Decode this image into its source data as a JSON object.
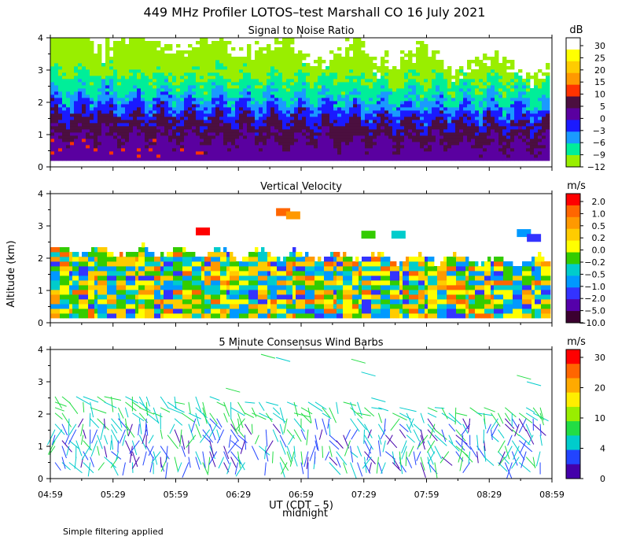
{
  "figure_title": "449 MHz Profiler LOTOS–test Marshall CO 16 July 2021",
  "ylabel": "Altitude (km)",
  "x_axis": {
    "ticks": [
      "04:59",
      "05:29",
      "05:59",
      "06:29",
      "06:59",
      "07:29",
      "07:59",
      "08:29",
      "08:59"
    ],
    "label": "UT  (CDT – 5)",
    "marker_label": "midnight"
  },
  "footnote": "Simple filtering applied",
  "chart_data": [
    {
      "type": "heatmap",
      "title": "Signal to Noise Ratio",
      "ylim": [
        0,
        4
      ],
      "yticks": [
        "0",
        "1",
        "2",
        "3",
        "4"
      ],
      "colorbar": {
        "unit": "dB",
        "labels": [
          "30",
          "25",
          "20",
          "15",
          "10",
          "5",
          "0",
          "−3",
          "−6",
          "−9",
          "−12"
        ],
        "colors": [
          "#ffffff",
          "#ffff00",
          "#ffcc00",
          "#ff9900",
          "#ff3300",
          "#4b0f3f",
          "#5a00a0",
          "#1a1aff",
          "#1a9aff",
          "#00ee99",
          "#99ee00"
        ]
      }
    },
    {
      "type": "heatmap",
      "title": "Vertical Velocity",
      "ylim": [
        0,
        4
      ],
      "yticks": [
        "0",
        "1",
        "2",
        "3",
        "4"
      ],
      "colorbar": {
        "unit": "m/s",
        "labels": [
          "2.0",
          "1.0",
          "0.5",
          "0.2",
          "0.0",
          "−0.2",
          "−0.5",
          "−1.0",
          "−2.0",
          "−5.0",
          "−10.0"
        ],
        "colors": [
          "#ff0000",
          "#ff6600",
          "#ff9900",
          "#ffcc00",
          "#ffff00",
          "#33cc00",
          "#00cccc",
          "#0099ff",
          "#3333ff",
          "#5500aa",
          "#3b0030"
        ]
      }
    },
    {
      "type": "scatter",
      "title": "5 Minute Consensus Wind Barbs",
      "ylim": [
        0,
        4
      ],
      "yticks": [
        "0",
        "1",
        "2",
        "3",
        "4"
      ],
      "colorbar": {
        "unit": "m/s",
        "labels": [
          "30",
          "20",
          "10",
          "4",
          "0"
        ],
        "colors": [
          "#ff0000",
          "#ff6600",
          "#ffaa00",
          "#ffee00",
          "#99ee00",
          "#22dd44",
          "#00cccc",
          "#2244ff",
          "#4400aa"
        ]
      }
    }
  ]
}
